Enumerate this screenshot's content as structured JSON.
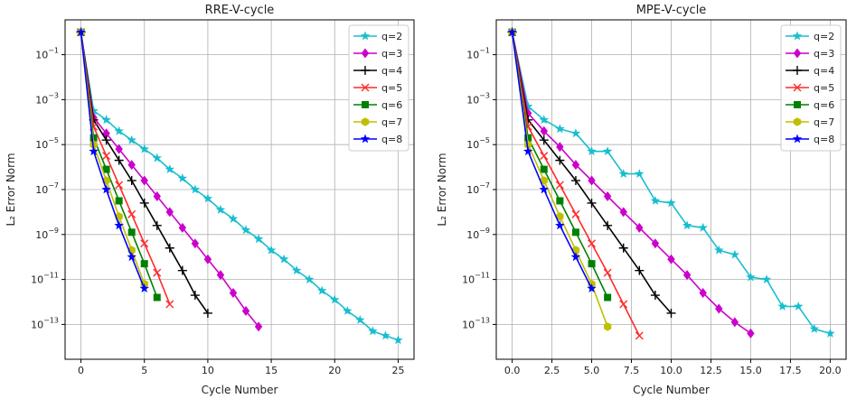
{
  "chart_data": [
    {
      "type": "line",
      "title": "RRE-V-cycle",
      "xlabel": "Cycle Number",
      "ylabel": "L₂ Error Norm",
      "yscale": "log",
      "xlim": [
        -1.25,
        26.25
      ],
      "ylim_log10": [
        -14.55,
        0.55
      ],
      "xticks": [
        0,
        5,
        10,
        15,
        20,
        25
      ],
      "xtick_labels": [
        "0",
        "5",
        "10",
        "15",
        "20",
        "25"
      ],
      "ytick_exponents": [
        -1,
        -3,
        -5,
        -7,
        -9,
        -11,
        -13
      ],
      "grid": true,
      "legend_position": "top-right",
      "series": [
        {
          "name": "q=2",
          "color": "#17becf",
          "marker": "star",
          "x": [
            0,
            1,
            2,
            3,
            4,
            5,
            6,
            7,
            8,
            9,
            10,
            11,
            12,
            13,
            14,
            15,
            16,
            17,
            18,
            19,
            20,
            21,
            22,
            23,
            24,
            25
          ],
          "log10_y": [
            0,
            -3.5,
            -3.9,
            -4.4,
            -4.8,
            -5.2,
            -5.6,
            -6.1,
            -6.5,
            -7.0,
            -7.4,
            -7.9,
            -8.3,
            -8.8,
            -9.2,
            -9.7,
            -10.1,
            -10.6,
            -11.0,
            -11.5,
            -11.9,
            -12.4,
            -12.8,
            -13.3,
            -13.5,
            -13.7
          ]
        },
        {
          "name": "q=3",
          "color": "#cc00cc",
          "marker": "diamond",
          "x": [
            0,
            1,
            2,
            3,
            4,
            5,
            6,
            7,
            8,
            9,
            10,
            11,
            12,
            13,
            14
          ],
          "log10_y": [
            0,
            -3.8,
            -4.5,
            -5.2,
            -5.9,
            -6.6,
            -7.3,
            -8.0,
            -8.7,
            -9.4,
            -10.1,
            -10.8,
            -11.6,
            -12.4,
            -13.1
          ]
        },
        {
          "name": "q=4",
          "color": "#000000",
          "marker": "plus",
          "x": [
            0,
            1,
            2,
            3,
            4,
            5,
            6,
            7,
            8,
            9,
            10
          ],
          "log10_y": [
            0,
            -3.9,
            -4.8,
            -5.7,
            -6.6,
            -7.6,
            -8.6,
            -9.6,
            -10.6,
            -11.7,
            -12.5
          ]
        },
        {
          "name": "q=5",
          "color": "#ff2a2a",
          "marker": "x",
          "x": [
            0,
            1,
            2,
            3,
            4,
            5,
            6,
            7
          ],
          "log10_y": [
            0,
            -4.2,
            -5.5,
            -6.8,
            -8.1,
            -9.4,
            -10.7,
            -12.1
          ]
        },
        {
          "name": "q=6",
          "color": "#008000",
          "marker": "square",
          "x": [
            0,
            1,
            2,
            3,
            4,
            5,
            6
          ],
          "log10_y": [
            0,
            -4.7,
            -6.1,
            -7.5,
            -8.9,
            -10.3,
            -11.8
          ]
        },
        {
          "name": "q=7",
          "color": "#bfbf00",
          "marker": "hexagon",
          "x": [
            0,
            1,
            2,
            3,
            4,
            5
          ],
          "log10_y": [
            0,
            -5.0,
            -6.6,
            -8.2,
            -9.7,
            -11.2
          ]
        },
        {
          "name": "q=8",
          "color": "#0000ff",
          "marker": "star",
          "x": [
            0,
            1,
            2,
            3,
            4,
            5
          ],
          "log10_y": [
            0,
            -5.3,
            -7.0,
            -8.6,
            -10.0,
            -11.4
          ]
        }
      ]
    },
    {
      "type": "line",
      "title": "MPE-V-cycle",
      "xlabel": "Cycle Number",
      "ylabel": "L₂ Error Norm",
      "yscale": "log",
      "xlim": [
        -1.0,
        21.0
      ],
      "ylim_log10": [
        -14.55,
        0.55
      ],
      "xticks": [
        0.0,
        2.5,
        5.0,
        7.5,
        10.0,
        12.5,
        15.0,
        17.5,
        20.0
      ],
      "xtick_labels": [
        "0.0",
        "2.5",
        "5.0",
        "7.5",
        "10.0",
        "12.5",
        "15.0",
        "17.5",
        "20.0"
      ],
      "ytick_exponents": [
        -1,
        -3,
        -5,
        -7,
        -9,
        -11,
        -13
      ],
      "grid": true,
      "legend_position": "top-right",
      "series": [
        {
          "name": "q=2",
          "color": "#17becf",
          "marker": "star",
          "x": [
            0,
            1,
            2,
            3,
            4,
            5,
            6,
            7,
            8,
            9,
            10,
            11,
            12,
            13,
            14,
            15,
            16,
            17,
            18,
            19,
            20
          ],
          "log10_y": [
            0,
            -3.3,
            -3.9,
            -4.3,
            -4.5,
            -5.3,
            -5.3,
            -6.3,
            -6.3,
            -7.5,
            -7.6,
            -8.6,
            -8.7,
            -9.7,
            -9.9,
            -10.9,
            -11.0,
            -12.2,
            -12.2,
            -13.2,
            -13.4
          ]
        },
        {
          "name": "q=3",
          "color": "#cc00cc",
          "marker": "diamond",
          "x": [
            0,
            1,
            2,
            3,
            4,
            5,
            6,
            7,
            8,
            9,
            10,
            11,
            12,
            13,
            14,
            15
          ],
          "log10_y": [
            0,
            -3.6,
            -4.4,
            -5.1,
            -5.9,
            -6.6,
            -7.3,
            -8.0,
            -8.7,
            -9.4,
            -10.1,
            -10.8,
            -11.6,
            -12.3,
            -12.9,
            -13.4
          ]
        },
        {
          "name": "q=4",
          "color": "#000000",
          "marker": "plus",
          "x": [
            0,
            1,
            2,
            3,
            4,
            5,
            6,
            7,
            8,
            9,
            10
          ],
          "log10_y": [
            0,
            -3.9,
            -4.8,
            -5.7,
            -6.6,
            -7.6,
            -8.6,
            -9.6,
            -10.6,
            -11.7,
            -12.5
          ]
        },
        {
          "name": "q=5",
          "color": "#ff2a2a",
          "marker": "x",
          "x": [
            0,
            1,
            2,
            3,
            4,
            5,
            6,
            7,
            8
          ],
          "log10_y": [
            0,
            -4.2,
            -5.5,
            -6.8,
            -8.1,
            -9.4,
            -10.7,
            -12.1,
            -13.5
          ]
        },
        {
          "name": "q=6",
          "color": "#008000",
          "marker": "square",
          "x": [
            0,
            1,
            2,
            3,
            4,
            5,
            6
          ],
          "log10_y": [
            0,
            -4.7,
            -6.1,
            -7.5,
            -8.9,
            -10.3,
            -11.8
          ]
        },
        {
          "name": "q=7",
          "color": "#bfbf00",
          "marker": "hexagon",
          "x": [
            0,
            1,
            2,
            3,
            4,
            5,
            6
          ],
          "log10_y": [
            0,
            -5.0,
            -6.6,
            -8.2,
            -9.7,
            -11.2,
            -13.1
          ]
        },
        {
          "name": "q=8",
          "color": "#0000ff",
          "marker": "star",
          "x": [
            0,
            1,
            2,
            3,
            4,
            5
          ],
          "log10_y": [
            0,
            -5.3,
            -7.0,
            -8.6,
            -10.0,
            -11.4
          ]
        }
      ]
    }
  ]
}
